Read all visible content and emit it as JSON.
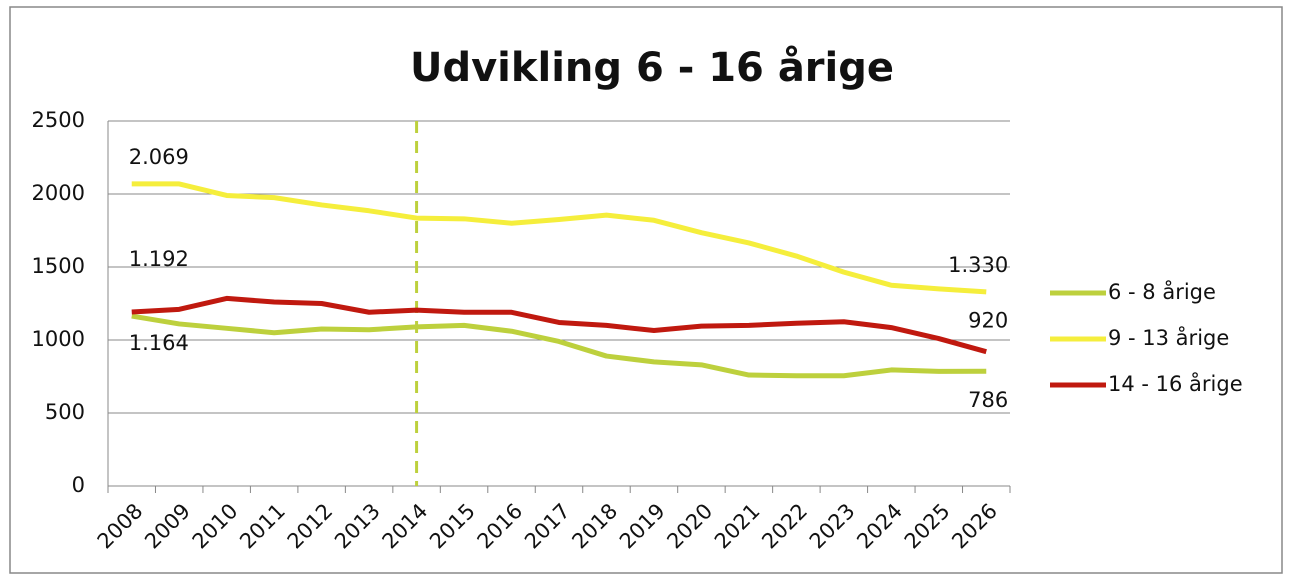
{
  "chart_data": {
    "type": "line",
    "title": "Udvikling  6 - 16 årige",
    "categories": [
      "2008",
      "2009",
      "2010",
      "2011",
      "2012",
      "2013",
      "2014",
      "2015",
      "2016",
      "2017",
      "2018",
      "2019",
      "2020",
      "2021",
      "2022",
      "2023",
      "2024",
      "2025",
      "2026"
    ],
    "series": [
      {
        "name": "6 - 8 årige",
        "color": "#bdd03d",
        "values": [
          1164,
          1110,
          1080,
          1050,
          1075,
          1070,
          1090,
          1100,
          1060,
          990,
          890,
          850,
          830,
          760,
          755,
          755,
          795,
          785,
          786
        ],
        "value_labels": [
          "1.164",
          null,
          null,
          null,
          null,
          null,
          null,
          null,
          null,
          null,
          null,
          null,
          null,
          null,
          null,
          null,
          null,
          null,
          "786"
        ]
      },
      {
        "name": "9 - 13 årige",
        "color": "#f5ee3c",
        "values": [
          2069,
          2069,
          1990,
          1975,
          1925,
          1885,
          1835,
          1830,
          1800,
          1825,
          1855,
          1820,
          1735,
          1665,
          1575,
          1465,
          1375,
          1350,
          1330
        ],
        "value_labels": [
          "2.069",
          null,
          null,
          null,
          null,
          null,
          null,
          null,
          null,
          null,
          null,
          null,
          null,
          null,
          null,
          null,
          null,
          null,
          "1.330"
        ]
      },
      {
        "name": "14 - 16 årige",
        "color": "#c0190f",
        "values": [
          1192,
          1210,
          1285,
          1260,
          1250,
          1190,
          1205,
          1190,
          1190,
          1120,
          1100,
          1065,
          1095,
          1100,
          1115,
          1125,
          1085,
          1010,
          920
        ],
        "value_labels": [
          "1.192",
          null,
          null,
          null,
          null,
          null,
          null,
          null,
          null,
          null,
          null,
          null,
          null,
          null,
          null,
          null,
          null,
          null,
          "920"
        ]
      }
    ],
    "ylim": [
      0,
      2500
    ],
    "yticks": [
      0,
      500,
      1000,
      1500,
      2000,
      2500
    ],
    "grid": true,
    "marker_category": "2014",
    "marker_color": "#bdd03d",
    "legend": "right"
  }
}
